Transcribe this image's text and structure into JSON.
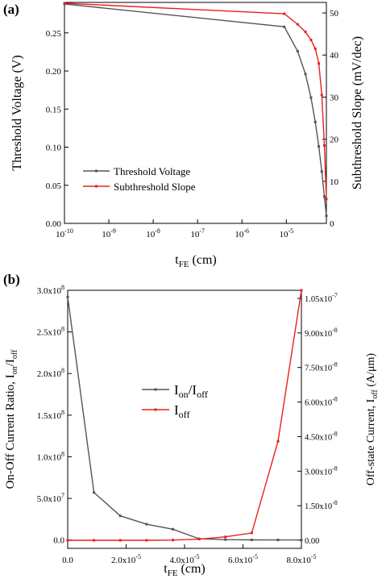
{
  "chart_data": [
    {
      "panel_label": "(a)",
      "type": "line",
      "title": "",
      "xscale": "log",
      "xlabel": "t",
      "xlabel_sub": "FE",
      "xlabel_unit": " (cm)",
      "xtick_values": [
        1e-10,
        1e-09,
        1e-08,
        1e-07,
        1e-06,
        1e-05
      ],
      "xtick_labels": [
        {
          "base": "10",
          "exp": "-10"
        },
        {
          "base": "10",
          "exp": "-9"
        },
        {
          "base": "10",
          "exp": "-8"
        },
        {
          "base": "10",
          "exp": "-7"
        },
        {
          "base": "10",
          "exp": "-6"
        },
        {
          "base": "10",
          "exp": "-5"
        }
      ],
      "xlim": [
        1e-10,
        8e-05
      ],
      "ylabel_left": "Threshold Voltage (V)",
      "ylim_left": [
        0,
        0.29
      ],
      "yticks_left": [
        0.0,
        0.05,
        0.1,
        0.15,
        0.2,
        0.25
      ],
      "ytick_labels_left": [
        "0.00",
        "0.05",
        "0.10",
        "0.15",
        "0.20",
        "0.25"
      ],
      "ylabel_right": "Subthreshold Slope (mV/dec)",
      "ylim_right": [
        0,
        52.5
      ],
      "yticks_right": [
        0,
        10,
        20,
        30,
        40,
        50
      ],
      "ytick_labels_right": [
        "0",
        "10",
        "20",
        "30",
        "40",
        "50"
      ],
      "legend_position": "center-left",
      "series": [
        {
          "name": "Threshold Voltage",
          "axis": "left",
          "color": "#555555",
          "x": [
            1e-10,
            9e-06,
            1.8e-05,
            2.7e-05,
            3.6e-05,
            4.5e-05,
            5.4e-05,
            6.3e-05,
            7.2e-05,
            8e-05
          ],
          "y": [
            0.288,
            0.258,
            0.226,
            0.196,
            0.165,
            0.133,
            0.101,
            0.068,
            0.035,
            0.01
          ]
        },
        {
          "name": "Subthreshold Slope",
          "axis": "right",
          "color": "#e8201e",
          "x": [
            1e-10,
            9e-06,
            1.8e-05,
            2.7e-05,
            3.6e-05,
            4.5e-05,
            5.4e-05,
            6.3e-05,
            7.2e-05,
            8e-05
          ],
          "y": [
            52.3,
            49.8,
            47.3,
            45.5,
            43.6,
            41.5,
            38.0,
            30.5,
            18.5,
            5.8
          ]
        }
      ]
    },
    {
      "panel_label": "(b)",
      "type": "line",
      "title": "",
      "xscale": "linear",
      "xlabel": "t",
      "xlabel_sub": "FE",
      "xlabel_unit": " (cm)",
      "xlim": [
        0,
        8e-05
      ],
      "xticks": [
        0,
        2e-05,
        4e-05,
        6e-05,
        8e-05
      ],
      "xtick_labels": [
        {
          "base": "0.0",
          "exp": ""
        },
        {
          "base": "2.0x10",
          "exp": "-5"
        },
        {
          "base": "4.0x10",
          "exp": "-5"
        },
        {
          "base": "6.0x10",
          "exp": "-5"
        },
        {
          "base": "8.0x10",
          "exp": "-5"
        }
      ],
      "ylabel_left": "On-Off Current Ratio, I",
      "ylabel_left_subs": [
        "on",
        "off"
      ],
      "ylim_left": [
        -10000000.0,
        300000000.0
      ],
      "yticks_left": [
        0,
        50000000.0,
        100000000.0,
        150000000.0,
        200000000.0,
        250000000.0,
        300000000.0
      ],
      "ytick_labels_left": [
        {
          "base": "0.0",
          "exp": ""
        },
        {
          "base": "5.0x10",
          "exp": "7"
        },
        {
          "base": "1.0x10",
          "exp": "8"
        },
        {
          "base": "1.5x10",
          "exp": "8"
        },
        {
          "base": "2.0x10",
          "exp": "8"
        },
        {
          "base": "2.5x10",
          "exp": "8"
        },
        {
          "base": "3.0x10",
          "exp": "8"
        }
      ],
      "ylabel_right": "Off-state Current, I",
      "ylabel_right_sub": "off",
      "ylabel_right_unit": " (A/μm)",
      "ylim_right": [
        -3.5e-09,
        1.085e-07
      ],
      "yticks_right": [
        0,
        1.5e-08,
        3e-08,
        4.5e-08,
        6e-08,
        7.5e-08,
        9e-08,
        1.05e-07
      ],
      "ytick_labels_right": [
        {
          "base": "0.00",
          "exp": ""
        },
        {
          "base": "1.50x10",
          "exp": "-8"
        },
        {
          "base": "3.00x10",
          "exp": "-8"
        },
        {
          "base": "4.50x10",
          "exp": "-8"
        },
        {
          "base": "6.00x10",
          "exp": "-8"
        },
        {
          "base": "7.50x10",
          "exp": "-8"
        },
        {
          "base": "9.00x10",
          "exp": "-8"
        },
        {
          "base": "1.05x10",
          "exp": "-7"
        }
      ],
      "legend_position": "center",
      "series": [
        {
          "name": "I",
          "name_sub1": "on",
          "name_mid": "/I",
          "name_sub2": "off",
          "axis": "left",
          "color": "#555555",
          "x": [
            0,
            9e-06,
            1.8e-05,
            2.7e-05,
            3.6e-05,
            4.5e-05,
            5.4e-05,
            6.3e-05,
            7.2e-05,
            8e-05
          ],
          "y": [
            292000000.0,
            57000000.0,
            29000000.0,
            19000000.0,
            13000000.0,
            1500000.0,
            500000.0,
            200000.0,
            100000.0,
            50000.0
          ]
        },
        {
          "name": "I",
          "name_sub1": "off",
          "name_mid": "",
          "name_sub2": "",
          "axis": "right",
          "color": "#e8201e",
          "x": [
            0,
            9e-06,
            1.8e-05,
            2.7e-05,
            3.6e-05,
            4.5e-05,
            5.4e-05,
            6.3e-05,
            7.2e-05,
            8e-05
          ],
          "y": [
            0,
            0,
            0,
            0,
            1e-10,
            5e-10,
            1.5e-09,
            3.2e-09,
            4.3e-08,
            1.085e-07
          ]
        }
      ]
    }
  ]
}
